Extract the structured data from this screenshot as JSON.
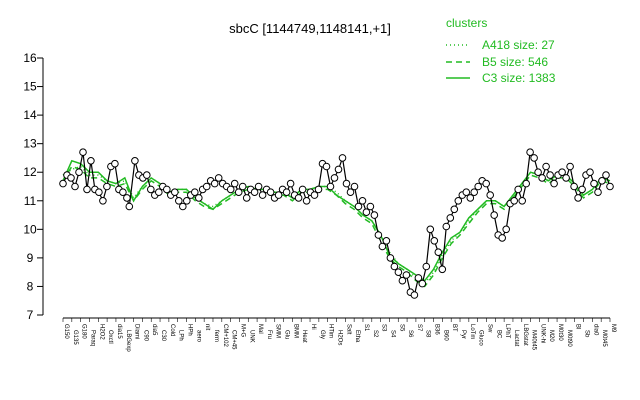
{
  "chart_data": {
    "type": "line",
    "title": "sbcC [1144749,1148141,+1]",
    "xlabel": "",
    "ylabel": "",
    "ylim": [
      7,
      16
    ],
    "yticks": [
      7,
      8,
      9,
      10,
      11,
      12,
      13,
      14,
      15,
      16
    ],
    "grid": false,
    "legend_position": "top-right",
    "legend": {
      "title": "clusters",
      "items": [
        {
          "label": "A418 size: 27",
          "style": "dotted"
        },
        {
          "label": "B5 size: 546",
          "style": "dashed"
        },
        {
          "label": "C3 size: 1383",
          "style": "solid"
        }
      ]
    },
    "colors": {
      "cluster_line": "#22bb22",
      "points": "#000000",
      "point_fill": "#ffffff"
    },
    "x_tick_labels": [
      "G150",
      "G135",
      "G180",
      "Paraq",
      "H2O2",
      "Oxctl",
      "dia15",
      "LBGexp",
      "Diami",
      "C90",
      "dia5",
      "C30",
      "Cold",
      "LPh",
      "HPh",
      "aero",
      "nit",
      "ferm",
      "CM+102",
      "CM+45",
      "M+G",
      "UNK",
      "Mal",
      "Fru",
      "SMM",
      "Glu",
      "BMM",
      "Heat",
      "Hi",
      "Gly",
      "HTim",
      "H2Os",
      "Salt",
      "Etha",
      "S1",
      "S2",
      "S3",
      "S4",
      "S5",
      "S6",
      "S7",
      "S8",
      "B36",
      "B60",
      "BT",
      "Pyr",
      "LoTm",
      "Gluco",
      "Sw",
      "BC",
      "LPhT",
      "Lactat",
      "LBGstat",
      "M40t45",
      "UNK-hi",
      "M20",
      "M0t30",
      "M0t90",
      "Bl",
      "Sb",
      "dia0",
      "M0t45",
      "M9"
    ],
    "series": [
      {
        "name": "C3 size: 1383",
        "values": [
          11.7,
          12.4,
          12.3,
          12.0,
          12.0,
          11.7,
          11.6,
          11.8,
          11.0,
          11.5,
          11.8,
          11.6,
          11.3,
          11.4,
          11.4,
          11.1,
          10.9,
          10.7,
          11.0,
          11.2,
          11.4,
          11.5,
          11.4,
          11.4,
          11.3,
          11.3,
          11.1,
          11.4,
          11.4,
          11.5,
          11.5,
          11.2,
          11.0,
          10.8,
          10.5,
          10.3,
          9.8,
          9.1,
          8.8,
          8.6,
          8.4,
          8.2,
          8.6,
          9.2,
          9.7,
          9.9,
          10.4,
          10.7,
          11.0,
          11.0,
          10.8,
          11.2,
          11.6,
          12.0,
          11.9,
          11.7,
          11.9,
          11.9,
          11.6,
          11.2,
          11.4,
          11.8,
          11.7
        ]
      },
      {
        "name": "B5 size: 546",
        "values": [
          11.7,
          12.2,
          12.1,
          11.8,
          11.8,
          11.6,
          11.5,
          11.6,
          11.0,
          11.4,
          11.7,
          11.5,
          11.2,
          11.3,
          11.3,
          11.0,
          10.8,
          10.7,
          10.9,
          11.1,
          11.3,
          11.4,
          11.3,
          11.3,
          11.2,
          11.2,
          11.0,
          11.3,
          11.3,
          11.4,
          11.4,
          11.2,
          10.9,
          10.7,
          10.4,
          10.2,
          9.6,
          9.0,
          8.7,
          8.5,
          8.2,
          8.0,
          8.4,
          9.0,
          9.5,
          9.8,
          10.2,
          10.6,
          10.9,
          10.9,
          10.7,
          11.1,
          11.5,
          11.9,
          11.8,
          11.6,
          11.8,
          11.8,
          11.5,
          11.1,
          11.3,
          11.7,
          11.6
        ]
      },
      {
        "name": "A418 size: 27",
        "values": [
          11.9,
          12.1,
          12.2,
          11.9,
          11.9,
          11.7,
          11.6,
          11.7,
          11.1,
          11.5,
          11.8,
          11.6,
          11.3,
          11.4,
          11.4,
          11.1,
          10.9,
          10.8,
          11.0,
          11.2,
          11.4,
          11.5,
          11.4,
          11.4,
          11.3,
          11.3,
          11.1,
          11.4,
          11.4,
          11.5,
          11.5,
          11.3,
          11.0,
          10.8,
          10.5,
          10.3,
          9.8,
          9.2,
          8.8,
          8.6,
          8.3,
          8.1,
          8.5,
          9.1,
          9.6,
          9.9,
          10.3,
          10.7,
          11.0,
          11.0,
          10.8,
          11.2,
          11.6,
          12.0,
          11.9,
          11.7,
          11.9,
          11.9,
          11.6,
          11.2,
          11.4,
          11.8,
          11.7
        ]
      }
    ],
    "points": [
      {
        "x": 0,
        "y": 11.6
      },
      {
        "x": 0.5,
        "y": 11.9
      },
      {
        "x": 1,
        "y": 11.8
      },
      {
        "x": 1.5,
        "y": 11.5
      },
      {
        "x": 2,
        "y": 12.0
      },
      {
        "x": 2.5,
        "y": 12.7
      },
      {
        "x": 3,
        "y": 11.4
      },
      {
        "x": 3.5,
        "y": 12.4
      },
      {
        "x": 4,
        "y": 11.4
      },
      {
        "x": 4.5,
        "y": 11.3
      },
      {
        "x": 5,
        "y": 11.0
      },
      {
        "x": 5.5,
        "y": 11.5
      },
      {
        "x": 6,
        "y": 12.2
      },
      {
        "x": 6.5,
        "y": 12.3
      },
      {
        "x": 7,
        "y": 11.4
      },
      {
        "x": 7.5,
        "y": 11.3
      },
      {
        "x": 8,
        "y": 11.1
      },
      {
        "x": 8.3,
        "y": 10.8
      },
      {
        "x": 9,
        "y": 12.4
      },
      {
        "x": 9.5,
        "y": 11.9
      },
      {
        "x": 10,
        "y": 11.8
      },
      {
        "x": 10.5,
        "y": 11.9
      },
      {
        "x": 11,
        "y": 11.4
      },
      {
        "x": 11.5,
        "y": 11.2
      },
      {
        "x": 12,
        "y": 11.3
      },
      {
        "x": 12.5,
        "y": 11.5
      },
      {
        "x": 13,
        "y": 11.4
      },
      {
        "x": 13.5,
        "y": 11.2
      },
      {
        "x": 14,
        "y": 11.3
      },
      {
        "x": 14.5,
        "y": 11.0
      },
      {
        "x": 15,
        "y": 10.8
      },
      {
        "x": 15.5,
        "y": 11.0
      },
      {
        "x": 16,
        "y": 11.2
      },
      {
        "x": 16.5,
        "y": 11.3
      },
      {
        "x": 17,
        "y": 11.1
      },
      {
        "x": 17.5,
        "y": 11.4
      },
      {
        "x": 18,
        "y": 11.5
      },
      {
        "x": 18.5,
        "y": 11.7
      },
      {
        "x": 19,
        "y": 11.6
      },
      {
        "x": 19.5,
        "y": 11.8
      },
      {
        "x": 20,
        "y": 11.6
      },
      {
        "x": 20.5,
        "y": 11.5
      },
      {
        "x": 21,
        "y": 11.4
      },
      {
        "x": 21.5,
        "y": 11.6
      },
      {
        "x": 22,
        "y": 11.3
      },
      {
        "x": 22.5,
        "y": 11.5
      },
      {
        "x": 23,
        "y": 11.1
      },
      {
        "x": 23.5,
        "y": 11.4
      },
      {
        "x": 24,
        "y": 11.3
      },
      {
        "x": 24.5,
        "y": 11.5
      },
      {
        "x": 25,
        "y": 11.2
      },
      {
        "x": 25.5,
        "y": 11.4
      },
      {
        "x": 26,
        "y": 11.3
      },
      {
        "x": 26.5,
        "y": 11.1
      },
      {
        "x": 27,
        "y": 11.2
      },
      {
        "x": 27.5,
        "y": 11.4
      },
      {
        "x": 28,
        "y": 11.3
      },
      {
        "x": 28.5,
        "y": 11.6
      },
      {
        "x": 29,
        "y": 11.2
      },
      {
        "x": 29.5,
        "y": 11.1
      },
      {
        "x": 30,
        "y": 11.4
      },
      {
        "x": 30.5,
        "y": 11.0
      },
      {
        "x": 31,
        "y": 11.3
      },
      {
        "x": 31.5,
        "y": 11.2
      },
      {
        "x": 32,
        "y": 11.4
      },
      {
        "x": 32.5,
        "y": 12.3
      },
      {
        "x": 33,
        "y": 12.2
      },
      {
        "x": 33.5,
        "y": 11.5
      },
      {
        "x": 34,
        "y": 11.8
      },
      {
        "x": 34.5,
        "y": 12.1
      },
      {
        "x": 35,
        "y": 12.5
      },
      {
        "x": 35.5,
        "y": 11.6
      },
      {
        "x": 36,
        "y": 11.3
      },
      {
        "x": 36.5,
        "y": 11.5
      },
      {
        "x": 37,
        "y": 10.8
      },
      {
        "x": 37.5,
        "y": 11.0
      },
      {
        "x": 38,
        "y": 10.6
      },
      {
        "x": 38.5,
        "y": 10.8
      },
      {
        "x": 39,
        "y": 10.5
      },
      {
        "x": 39.5,
        "y": 9.8
      },
      {
        "x": 40,
        "y": 9.4
      },
      {
        "x": 40.5,
        "y": 9.6
      },
      {
        "x": 41,
        "y": 9.0
      },
      {
        "x": 41.5,
        "y": 8.7
      },
      {
        "x": 42,
        "y": 8.5
      },
      {
        "x": 42.5,
        "y": 8.2
      },
      {
        "x": 43,
        "y": 8.4
      },
      {
        "x": 43.5,
        "y": 7.8
      },
      {
        "x": 44,
        "y": 7.7
      },
      {
        "x": 44.5,
        "y": 8.3
      },
      {
        "x": 45,
        "y": 8.1
      },
      {
        "x": 45.5,
        "y": 8.7
      },
      {
        "x": 46,
        "y": 10.0
      },
      {
        "x": 46.5,
        "y": 9.6
      },
      {
        "x": 47,
        "y": 9.2
      },
      {
        "x": 47.5,
        "y": 8.6
      },
      {
        "x": 48,
        "y": 10.1
      },
      {
        "x": 48.5,
        "y": 10.4
      },
      {
        "x": 49,
        "y": 10.7
      },
      {
        "x": 49.5,
        "y": 11.0
      },
      {
        "x": 50,
        "y": 11.2
      },
      {
        "x": 50.5,
        "y": 11.3
      },
      {
        "x": 51,
        "y": 11.1
      },
      {
        "x": 51.5,
        "y": 11.3
      },
      {
        "x": 52,
        "y": 11.5
      },
      {
        "x": 52.5,
        "y": 11.7
      },
      {
        "x": 53,
        "y": 11.6
      },
      {
        "x": 53.5,
        "y": 11.2
      },
      {
        "x": 54,
        "y": 10.5
      },
      {
        "x": 54.5,
        "y": 9.8
      },
      {
        "x": 55,
        "y": 9.7
      },
      {
        "x": 55.5,
        "y": 10.0
      },
      {
        "x": 56,
        "y": 10.9
      },
      {
        "x": 56.5,
        "y": 11.0
      },
      {
        "x": 57,
        "y": 11.4
      },
      {
        "x": 57.5,
        "y": 11.0
      },
      {
        "x": 58,
        "y": 11.6
      },
      {
        "x": 58.5,
        "y": 12.7
      },
      {
        "x": 59,
        "y": 12.5
      },
      {
        "x": 59.5,
        "y": 12.0
      },
      {
        "x": 60,
        "y": 11.8
      },
      {
        "x": 60.5,
        "y": 12.2
      },
      {
        "x": 61,
        "y": 11.9
      },
      {
        "x": 61.5,
        "y": 11.6
      },
      {
        "x": 62,
        "y": 11.9
      },
      {
        "x": 62.5,
        "y": 12.0
      },
      {
        "x": 63,
        "y": 11.8
      },
      {
        "x": 63.5,
        "y": 12.2
      },
      {
        "x": 64,
        "y": 11.5
      },
      {
        "x": 64.5,
        "y": 11.1
      },
      {
        "x": 65,
        "y": 11.4
      },
      {
        "x": 65.5,
        "y": 11.9
      },
      {
        "x": 66,
        "y": 12.0
      },
      {
        "x": 66.5,
        "y": 11.6
      },
      {
        "x": 67,
        "y": 11.3
      },
      {
        "x": 67.5,
        "y": 11.7
      },
      {
        "x": 68,
        "y": 11.9
      },
      {
        "x": 68.5,
        "y": 11.5
      }
    ]
  }
}
